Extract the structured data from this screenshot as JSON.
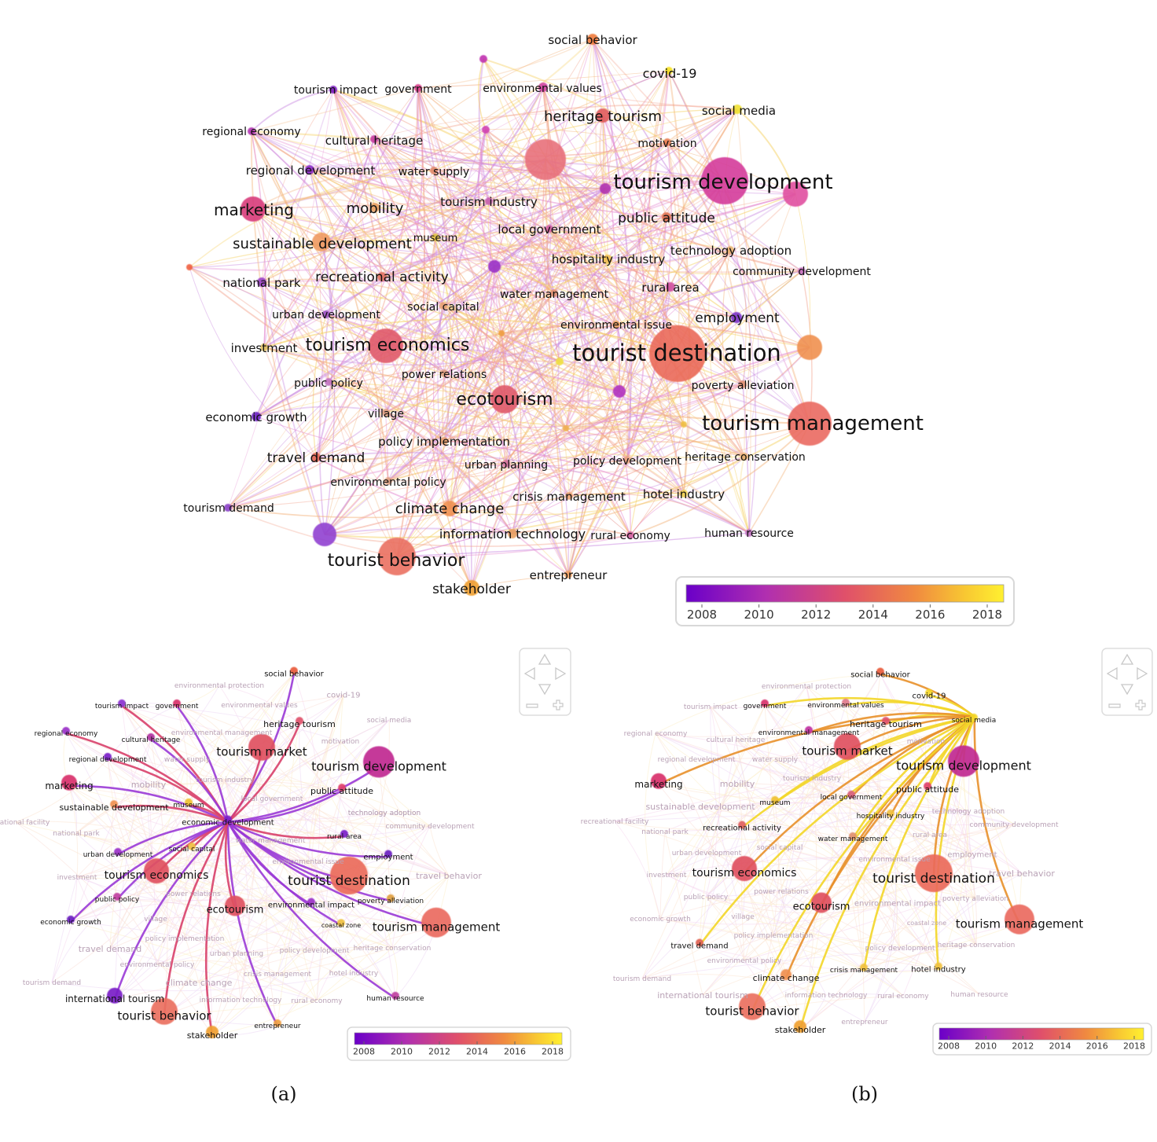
{
  "colors": {
    "gradient": [
      "#6a00c8",
      "#b02fb0",
      "#e0506a",
      "#f08a40",
      "#f8c832",
      "#fff030"
    ],
    "edge_main": [
      "#e58ad0",
      "#f2a08a",
      "#f3b27a",
      "#c98ae0",
      "#f5d060"
    ],
    "star_a": "#9a3ad6",
    "star_b": "#f3d628"
  },
  "legend": {
    "ticks": [
      "2008",
      "2010",
      "2012",
      "2014",
      "2016",
      "2018"
    ]
  },
  "captions": {
    "a": "(a)",
    "b": "(b)"
  },
  "main_map": {
    "nodes": [
      {
        "label": "social behavior",
        "color": "#f07a3a",
        "r": 7
      },
      {
        "label": "covid-19",
        "color": "#f6e020",
        "r": 5
      },
      {
        "label": "tourism impact",
        "color": "#7a18c0",
        "r": 5
      },
      {
        "label": "government",
        "color": "#d83a8a",
        "r": 5
      },
      {
        "label": "environmental values",
        "color": "#d040a0",
        "r": 6
      },
      {
        "label": "social media",
        "color": "#f0e030",
        "r": 6
      },
      {
        "label": "heritage tourism",
        "color": "#e05a5a",
        "r": 9
      },
      {
        "label": "regional economy",
        "color": "#b030b0",
        "r": 5
      },
      {
        "label": "cultural heritage",
        "color": "#c83aa0",
        "r": 5
      },
      {
        "label": "motivation",
        "color": "#e87a50",
        "r": 5
      },
      {
        "label": "tourism development",
        "color": "#d43a9a",
        "r": 30
      },
      {
        "label": "regional development",
        "color": "#8a2ac8",
        "r": 6
      },
      {
        "label": "water supply",
        "color": "#e08a6a",
        "r": 5
      },
      {
        "label": "marketing",
        "color": "#d83a7a",
        "r": 16
      },
      {
        "label": "mobility",
        "color": "#e8a060",
        "r": 6
      },
      {
        "label": "tourism industry",
        "color": "#c860b0",
        "r": 5
      },
      {
        "label": "public attitude",
        "color": "#e07050",
        "r": 6
      },
      {
        "label": "sustainable development",
        "color": "#f09a60",
        "r": 12
      },
      {
        "label": "museum",
        "color": "#e0c040",
        "r": 5
      },
      {
        "label": "local government",
        "color": "#d060a0",
        "r": 5
      },
      {
        "label": "technology adoption",
        "color": "#e8b070",
        "r": 5
      },
      {
        "label": "hospitality industry",
        "color": "#f0c050",
        "r": 6
      },
      {
        "label": "community development",
        "color": "#c870c0",
        "r": 5
      },
      {
        "label": "national park",
        "color": "#9a40c8",
        "r": 6
      },
      {
        "label": "recreational activity",
        "color": "#e07060",
        "r": 6
      },
      {
        "label": "water management",
        "color": "#e09070",
        "r": 5
      },
      {
        "label": "rural area",
        "color": "#d050a0",
        "r": 6
      },
      {
        "label": "social capital",
        "color": "#e8a070",
        "r": 5
      },
      {
        "label": "urban development",
        "color": "#9a50c0",
        "r": 5
      },
      {
        "label": "employment",
        "color": "#7a30c8",
        "r": 7
      },
      {
        "label": "environmental issue",
        "color": "#e8a060",
        "r": 5
      },
      {
        "label": "investment",
        "color": "#e0c060",
        "r": 5
      },
      {
        "label": "tourism economics",
        "color": "#e05a6a",
        "r": 22
      },
      {
        "label": "tourist destination",
        "color": "#ea6a5a",
        "r": 36
      },
      {
        "label": "public policy",
        "color": "#c070c0",
        "r": 5
      },
      {
        "label": "power relations",
        "color": "#e0a080",
        "r": 5
      },
      {
        "label": "poverty alleviation",
        "color": "#e09070",
        "r": 5
      },
      {
        "label": "economic growth",
        "color": "#6a20c0",
        "r": 6
      },
      {
        "label": "village",
        "color": "#e0a080",
        "r": 5
      },
      {
        "label": "ecotourism",
        "color": "#e05a6a",
        "r": 18
      },
      {
        "label": "tourism management",
        "color": "#ea6a60",
        "r": 28
      },
      {
        "label": "policy implementation",
        "color": "#e8a070",
        "r": 5
      },
      {
        "label": "travel demand",
        "color": "#e06050",
        "r": 6
      },
      {
        "label": "urban planning",
        "color": "#d070a0",
        "r": 5
      },
      {
        "label": "policy development",
        "color": "#e8a080",
        "r": 5
      },
      {
        "label": "heritage conservation",
        "color": "#e8b070",
        "r": 5
      },
      {
        "label": "environmental policy",
        "color": "#e0a080",
        "r": 5
      },
      {
        "label": "climate change",
        "color": "#f09050",
        "r": 10
      },
      {
        "label": "crisis management",
        "color": "#e8a070",
        "r": 5
      },
      {
        "label": "hotel industry",
        "color": "#f0d050",
        "r": 5
      },
      {
        "label": "tourism demand",
        "color": "#8a40c8",
        "r": 5
      },
      {
        "label": "information technology",
        "color": "#e8a060",
        "r": 6
      },
      {
        "label": "rural economy",
        "color": "#d060a0",
        "r": 5
      },
      {
        "label": "human resource",
        "color": "#c070c0",
        "r": 5
      },
      {
        "label": "tourist behavior",
        "color": "#ea7060",
        "r": 24
      },
      {
        "label": "entrepreneur",
        "color": "#f0a060",
        "r": 5
      },
      {
        "label": "stakeholder",
        "color": "#f0a030",
        "r": 10
      }
    ]
  },
  "sub_maps": {
    "a": {
      "center": "economic development",
      "highlighted": [
        "social behavior",
        "tourism impact",
        "government",
        "heritage tourism",
        "regional economy",
        "cultural heritage",
        "tourism market",
        "tourism development",
        "regional development",
        "marketing",
        "public attitude",
        "sustainable development",
        "museum",
        "economic development",
        "rural area",
        "urban development",
        "social capital",
        "employment",
        "tourism economics",
        "tourist destination",
        "public policy",
        "ecotourism",
        "environmental impact",
        "poverty alleviation",
        "economic growth",
        "coastal zone",
        "tourism management",
        "international tourism",
        "human resource",
        "tourist behavior",
        "entrepreneur",
        "stakeholder"
      ],
      "faded": [
        "environmental protection",
        "covid-19",
        "environmental values",
        "social media",
        "environmental management",
        "motivation",
        "water supply",
        "mobility",
        "tourism industry",
        "local government",
        "technology adoption",
        "recreational facility",
        "national park",
        "community development",
        "water management",
        "environmental issue",
        "travel behavior",
        "investment",
        "power relations",
        "village",
        "technology adoption",
        "policy implementation",
        "travel demand",
        "urban planning",
        "policy development",
        "heritage conservation",
        "environmental policy",
        "crisis management",
        "hotel industry",
        "tourism demand",
        "climate change",
        "information technology",
        "rural economy"
      ]
    },
    "b": {
      "center": "social media",
      "highlighted": [
        "social behavior",
        "covid-19",
        "government",
        "environmental values",
        "heritage tourism",
        "social media",
        "environmental management",
        "tourism market",
        "tourism development",
        "marketing",
        "public attitude",
        "museum",
        "local government",
        "hospitality industry",
        "recreational activity",
        "water management",
        "tourism economics",
        "tourist destination",
        "ecotourism",
        "tourism management",
        "travel demand",
        "climate change",
        "crisis management",
        "hotel industry",
        "tourist behavior",
        "stakeholder"
      ],
      "faded": [
        "environmental protection",
        "tourism impact",
        "regional economy",
        "cultural heritage",
        "motivation",
        "regional development",
        "water supply",
        "mobility",
        "tourism industry",
        "sustainable development",
        "technology adoption",
        "recreational facility",
        "national park",
        "community development",
        "rural area",
        "urban development",
        "social capital",
        "employment",
        "environmental issue",
        "travel behavior",
        "investment",
        "public policy",
        "power relations",
        "poverty alleviation",
        "environmental impact",
        "economic growth",
        "village",
        "coastal zone",
        "policy implementation",
        "policy development",
        "heritage conservation",
        "environmental policy",
        "tourism demand",
        "international tourism",
        "information technology",
        "rural economy",
        "human resource",
        "entrepreneur"
      ]
    }
  }
}
